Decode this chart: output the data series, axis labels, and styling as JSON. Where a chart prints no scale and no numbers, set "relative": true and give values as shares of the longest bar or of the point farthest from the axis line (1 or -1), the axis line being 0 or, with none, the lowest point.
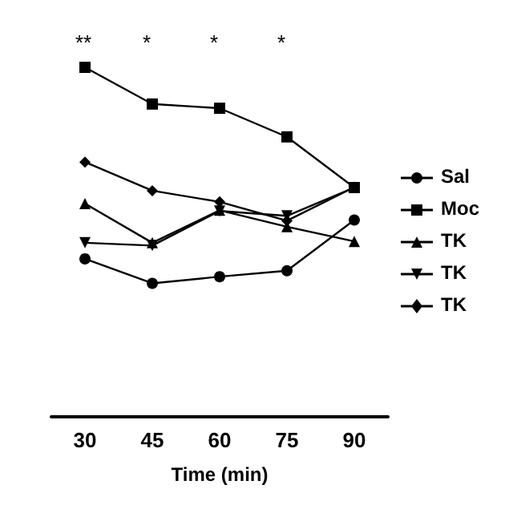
{
  "chart_data": {
    "type": "line",
    "xlabel": "Time (min)",
    "categories": [
      "30",
      "45",
      "60",
      "75",
      "90"
    ],
    "relative": true,
    "legend": "right",
    "grid": false,
    "series": [
      {
        "name": "Sal",
        "color": "#000000",
        "marker": "circle",
        "values": [
          0.452,
          0.382,
          0.401,
          0.418,
          0.563
        ]
      },
      {
        "name": "Moc",
        "color": "#000000",
        "marker": "square",
        "values": [
          1,
          0.895,
          0.883,
          0.801,
          0.656
        ]
      },
      {
        "name": "TK",
        "color": "#000000",
        "marker": "triangle",
        "values": [
          0.61,
          0.498,
          0.591,
          0.544,
          0.502
        ]
      },
      {
        "name": "TK",
        "color": "#000000",
        "marker": "triangle-down",
        "values": [
          0.498,
          0.49,
          0.589,
          0.575,
          0.656
        ]
      },
      {
        "name": "TK",
        "color": "#000000",
        "marker": "diamond",
        "values": [
          0.729,
          0.647,
          0.615,
          0.561,
          0.657
        ]
      }
    ],
    "annotations": [
      "**",
      "*",
      "*",
      "*"
    ]
  }
}
